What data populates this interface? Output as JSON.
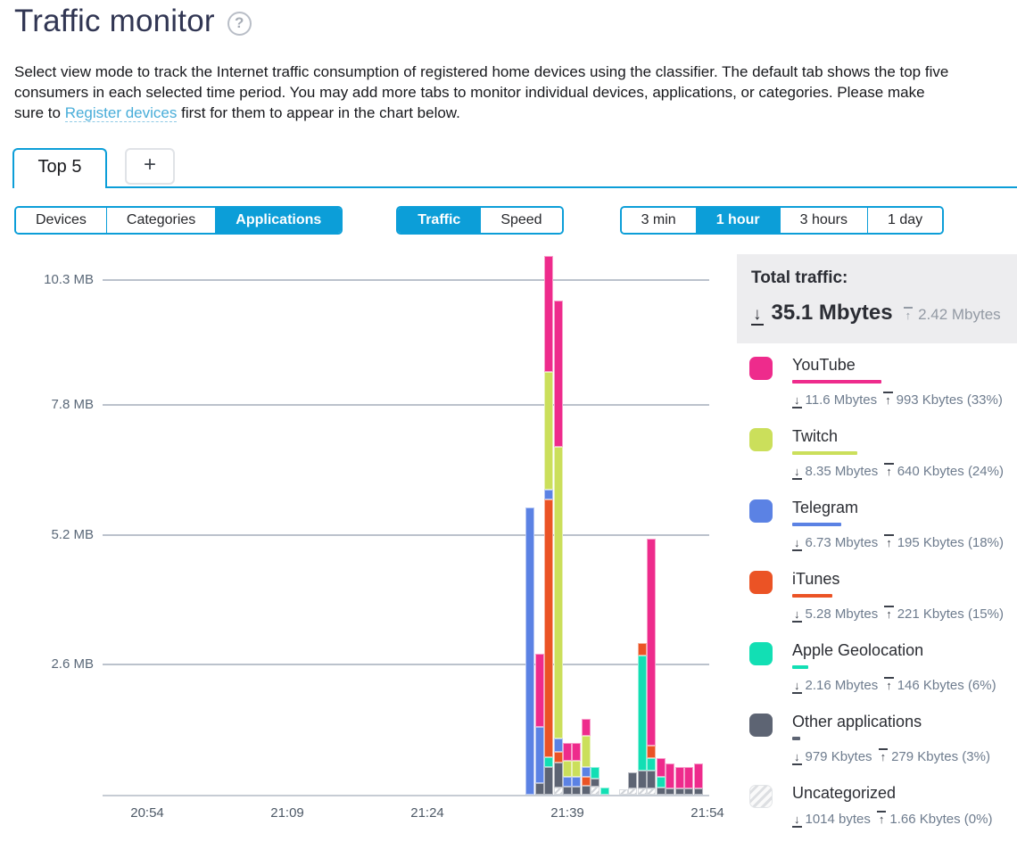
{
  "header": {
    "title": "Traffic monitor",
    "help_glyph": "?"
  },
  "intro": {
    "before_link": "Select view mode to track the Internet traffic consumption of registered home devices using the classifier. The default tab shows the top five consumers in each selected time period. You may add more tabs to monitor individual devices, applications, or categories. Please make sure to ",
    "link_text": "Register devices",
    "after_link": " first for them to appear in the chart below."
  },
  "tabs": {
    "items": [
      {
        "label": "Top 5",
        "active": true
      },
      {
        "label": "+",
        "active": false
      }
    ]
  },
  "controls": {
    "view_mode": {
      "options": [
        "Devices",
        "Categories",
        "Applications"
      ],
      "selected": "Applications"
    },
    "metric": {
      "options": [
        "Traffic",
        "Speed"
      ],
      "selected": "Traffic"
    },
    "period": {
      "options": [
        "3 min",
        "1 hour",
        "3 hours",
        "1 day"
      ],
      "selected": "1 hour"
    }
  },
  "totals": {
    "label": "Total traffic:",
    "download": "35.1 Mbytes",
    "upload": "2.42 Mbytes"
  },
  "legend": [
    {
      "key": "youtube",
      "name": "YouTube",
      "color": "#ee2b8c",
      "down": "11.6 Mbytes",
      "up": "993 Kbytes",
      "pct": 33
    },
    {
      "key": "twitch",
      "name": "Twitch",
      "color": "#cbdf5b",
      "down": "8.35 Mbytes",
      "up": "640 Kbytes",
      "pct": 24
    },
    {
      "key": "telegram",
      "name": "Telegram",
      "color": "#5b82e4",
      "down": "6.73 Mbytes",
      "up": "195 Kbytes",
      "pct": 18
    },
    {
      "key": "itunes",
      "name": "iTunes",
      "color": "#eb5325",
      "down": "5.28 Mbytes",
      "up": "221 Kbytes",
      "pct": 15
    },
    {
      "key": "apple_geolocation",
      "name": "Apple Geolocation",
      "color": "#12dfb4",
      "down": "2.16 Mbytes",
      "up": "146 Kbytes",
      "pct": 6
    },
    {
      "key": "other",
      "name": "Other applications",
      "color": "#5d6473",
      "down": "979 Kbytes",
      "up": "279 Kbytes",
      "pct": 3
    },
    {
      "key": "uncategorized",
      "name": "Uncategorized",
      "color": "hatch",
      "down": "1014 bytes",
      "up": "1.66 Kbytes",
      "pct": 0
    }
  ],
  "chart_data": {
    "type": "bar",
    "subtype": "stacked-time-series",
    "unit": "MB",
    "title": "Traffic by application, 1 hour",
    "gridlines": [
      {
        "label": "10.3 MB",
        "mb": 10.3
      },
      {
        "label": "7.8 MB",
        "mb": 7.8
      },
      {
        "label": "5.2 MB",
        "mb": 5.2
      },
      {
        "label": "2.6 MB",
        "mb": 2.6
      }
    ],
    "x_ticks": [
      "20:54",
      "21:09",
      "21:24",
      "21:39",
      "21:54"
    ],
    "x_range": [
      "20:54",
      "21:54"
    ],
    "palette": {
      "youtube": "#ee2b8c",
      "twitch": "#cbdf5b",
      "telegram": "#5b82e4",
      "itunes": "#eb5325",
      "apple_geolocation": "#12dfb4",
      "other": "#5d6473",
      "uncategorized": "hatch"
    },
    "bars": [
      {
        "time": "21:35",
        "stack": [
          [
            "telegram",
            5.75
          ]
        ]
      },
      {
        "time": "21:36",
        "stack": [
          [
            "other",
            0.23
          ],
          [
            "telegram",
            1.12
          ],
          [
            "youtube",
            1.46
          ]
        ]
      },
      {
        "time": "21:37",
        "stack": [
          [
            "other",
            0.55
          ],
          [
            "apple_geolocation",
            0.2
          ],
          [
            "itunes",
            5.16
          ],
          [
            "telegram",
            0.2
          ],
          [
            "twitch",
            2.35
          ],
          [
            "youtube",
            2.33
          ]
        ]
      },
      {
        "time": "21:38",
        "stack": [
          [
            "uncategorized",
            0.14
          ],
          [
            "other",
            0.5
          ],
          [
            "itunes",
            0.21
          ],
          [
            "telegram",
            0.27
          ],
          [
            "twitch",
            5.84
          ],
          [
            "youtube",
            2.92
          ]
        ]
      },
      {
        "time": "21:39",
        "stack": [
          [
            "other",
            0.16
          ],
          [
            "telegram",
            0.2
          ],
          [
            "twitch",
            0.32
          ],
          [
            "youtube",
            0.36
          ]
        ]
      },
      {
        "time": "21:40",
        "stack": [
          [
            "other",
            0.16
          ],
          [
            "telegram",
            0.2
          ],
          [
            "twitch",
            0.32
          ],
          [
            "youtube",
            0.36
          ]
        ]
      },
      {
        "time": "21:41",
        "stack": [
          [
            "other",
            0.18
          ],
          [
            "itunes",
            0.18
          ],
          [
            "telegram",
            0.2
          ],
          [
            "twitch",
            0.62
          ],
          [
            "youtube",
            0.34
          ]
        ]
      },
      {
        "time": "21:42",
        "stack": [
          [
            "uncategorized",
            0.16
          ],
          [
            "other",
            0.16
          ],
          [
            "apple_geolocation",
            0.23
          ]
        ]
      },
      {
        "time": "21:43",
        "stack": [
          [
            "apple_geolocation",
            0.14
          ]
        ]
      },
      {
        "time": "21:45",
        "stack": [
          [
            "uncategorized",
            0.11
          ]
        ]
      },
      {
        "time": "21:46",
        "stack": [
          [
            "uncategorized",
            0.13
          ],
          [
            "other",
            0.32
          ]
        ]
      },
      {
        "time": "21:47",
        "stack": [
          [
            "uncategorized",
            0.13
          ],
          [
            "other",
            0.36
          ],
          [
            "apple_geolocation",
            2.3
          ],
          [
            "itunes",
            0.25
          ]
        ]
      },
      {
        "time": "21:48",
        "stack": [
          [
            "uncategorized",
            0.13
          ],
          [
            "other",
            0.36
          ],
          [
            "apple_geolocation",
            0.25
          ],
          [
            "itunes",
            0.25
          ],
          [
            "youtube",
            4.15
          ]
        ]
      },
      {
        "time": "21:49",
        "stack": [
          [
            "other",
            0.14
          ],
          [
            "apple_geolocation",
            0.21
          ],
          [
            "youtube",
            0.37
          ]
        ]
      },
      {
        "time": "21:50",
        "stack": [
          [
            "other",
            0.13
          ],
          [
            "youtube",
            0.5
          ]
        ]
      },
      {
        "time": "21:51",
        "stack": [
          [
            "other",
            0.13
          ],
          [
            "youtube",
            0.43
          ]
        ]
      },
      {
        "time": "21:52",
        "stack": [
          [
            "other",
            0.13
          ],
          [
            "youtube",
            0.43
          ]
        ]
      },
      {
        "time": "21:53",
        "stack": [
          [
            "other",
            0.13
          ],
          [
            "youtube",
            0.5
          ]
        ]
      }
    ]
  }
}
